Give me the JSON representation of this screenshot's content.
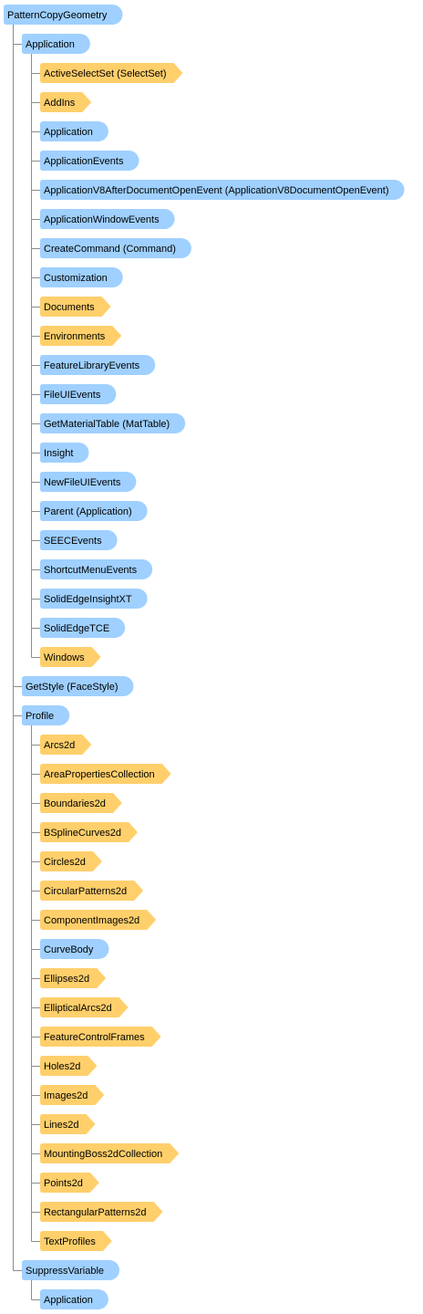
{
  "tree": {
    "label": "PatternCopyGeometry",
    "kind": "object",
    "children": [
      {
        "label": "Application",
        "kind": "object",
        "children": [
          {
            "label": "ActiveSelectSet (SelectSet)",
            "kind": "collection"
          },
          {
            "label": "AddIns",
            "kind": "collection"
          },
          {
            "label": "Application",
            "kind": "object"
          },
          {
            "label": "ApplicationEvents",
            "kind": "object"
          },
          {
            "label": "ApplicationV8AfterDocumentOpenEvent (ApplicationV8DocumentOpenEvent)",
            "kind": "object"
          },
          {
            "label": "ApplicationWindowEvents",
            "kind": "object"
          },
          {
            "label": "CreateCommand (Command)",
            "kind": "object"
          },
          {
            "label": "Customization",
            "kind": "object"
          },
          {
            "label": "Documents",
            "kind": "collection"
          },
          {
            "label": "Environments",
            "kind": "collection"
          },
          {
            "label": "FeatureLibraryEvents",
            "kind": "object"
          },
          {
            "label": "FileUIEvents",
            "kind": "object"
          },
          {
            "label": "GetMaterialTable (MatTable)",
            "kind": "object"
          },
          {
            "label": "Insight",
            "kind": "object"
          },
          {
            "label": "NewFileUIEvents",
            "kind": "object"
          },
          {
            "label": "Parent (Application)",
            "kind": "object"
          },
          {
            "label": "SEECEvents",
            "kind": "object"
          },
          {
            "label": "ShortcutMenuEvents",
            "kind": "object"
          },
          {
            "label": "SolidEdgeInsightXT",
            "kind": "object"
          },
          {
            "label": "SolidEdgeTCE",
            "kind": "object"
          },
          {
            "label": "Windows",
            "kind": "collection"
          }
        ]
      },
      {
        "label": "GetStyle (FaceStyle)",
        "kind": "object"
      },
      {
        "label": "Profile",
        "kind": "object",
        "children": [
          {
            "label": "Arcs2d",
            "kind": "collection"
          },
          {
            "label": "AreaPropertiesCollection",
            "kind": "collection"
          },
          {
            "label": "Boundaries2d",
            "kind": "collection"
          },
          {
            "label": "BSplineCurves2d",
            "kind": "collection"
          },
          {
            "label": "Circles2d",
            "kind": "collection"
          },
          {
            "label": "CircularPatterns2d",
            "kind": "collection"
          },
          {
            "label": "ComponentImages2d",
            "kind": "collection"
          },
          {
            "label": "CurveBody",
            "kind": "object"
          },
          {
            "label": "Ellipses2d",
            "kind": "collection"
          },
          {
            "label": "EllipticalArcs2d",
            "kind": "collection"
          },
          {
            "label": "FeatureControlFrames",
            "kind": "collection"
          },
          {
            "label": "Holes2d",
            "kind": "collection"
          },
          {
            "label": "Images2d",
            "kind": "collection"
          },
          {
            "label": "Lines2d",
            "kind": "collection"
          },
          {
            "label": "MountingBoss2dCollection",
            "kind": "collection"
          },
          {
            "label": "Points2d",
            "kind": "collection"
          },
          {
            "label": "RectangularPatterns2d",
            "kind": "collection"
          },
          {
            "label": "TextProfiles",
            "kind": "collection"
          }
        ]
      },
      {
        "label": "SuppressVariable",
        "kind": "object",
        "children": [
          {
            "label": "Application",
            "kind": "object"
          }
        ]
      }
    ]
  }
}
